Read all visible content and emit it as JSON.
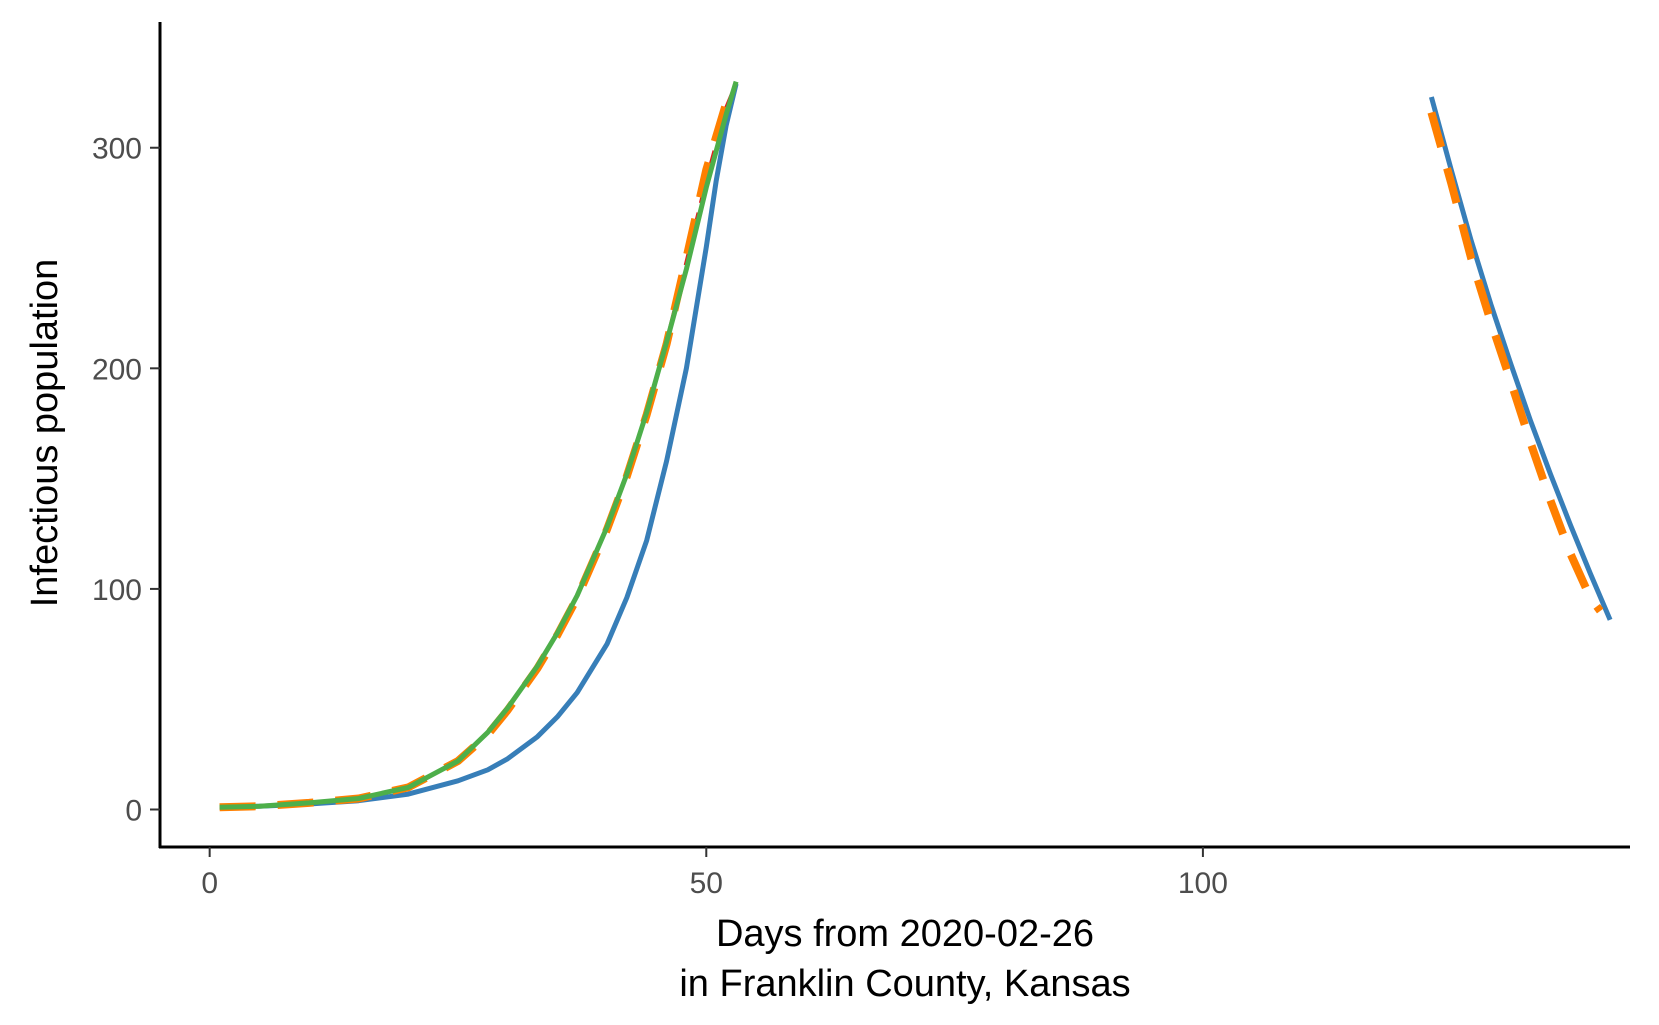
{
  "chart_data": {
    "type": "line",
    "title": "",
    "xlabel": [
      "Days from 2020-02-26",
      "in Franklin County, Kansas"
    ],
    "ylabel": "Infectious population",
    "xlim": [
      -5,
      143
    ],
    "ylim": [
      -17,
      357
    ],
    "x_ticks": [
      0,
      50,
      100
    ],
    "y_ticks": [
      0,
      100,
      200,
      300
    ],
    "grid": false,
    "legend": "none",
    "series": [
      {
        "color": "#377eb8",
        "style": "solid",
        "segments": [
          [
            [
              1,
              1
            ],
            [
              5,
              1.5
            ],
            [
              10,
              2.5
            ],
            [
              15,
              4
            ],
            [
              20,
              7
            ],
            [
              25,
              13
            ],
            [
              28,
              18
            ],
            [
              30,
              23
            ],
            [
              33,
              33
            ],
            [
              35,
              42
            ],
            [
              37,
              53
            ],
            [
              40,
              75
            ],
            [
              42,
              96
            ],
            [
              44,
              122
            ],
            [
              46,
              158
            ],
            [
              48,
              200
            ],
            [
              50,
              255
            ],
            [
              51,
              285
            ],
            [
              52,
              310
            ],
            [
              53,
              329
            ]
          ],
          [
            [
              123,
              323
            ],
            [
              125,
              290
            ],
            [
              127,
              258
            ],
            [
              129,
              229
            ],
            [
              131,
              202
            ],
            [
              133,
              176
            ],
            [
              135,
              152
            ],
            [
              137,
              129
            ],
            [
              139,
              107
            ],
            [
              141,
              86
            ]
          ]
        ]
      },
      {
        "color": "#e41a1c",
        "style": "dashed",
        "segments": [
          [
            [
              1,
              1
            ],
            [
              5,
              1.5
            ],
            [
              10,
              3
            ],
            [
              15,
              5
            ],
            [
              20,
              10
            ],
            [
              25,
              22
            ],
            [
              28,
              35
            ],
            [
              30,
              46
            ],
            [
              33,
              65
            ],
            [
              35,
              80
            ],
            [
              37,
              97
            ],
            [
              40,
              128
            ],
            [
              42,
              152
            ],
            [
              44,
              180
            ],
            [
              46,
              212
            ],
            [
              48,
              248
            ],
            [
              50,
              285
            ],
            [
              52,
              318
            ],
            [
              53,
              329
            ]
          ]
        ]
      },
      {
        "color": "#ff7f00",
        "style": "dashed",
        "segments": [
          [
            [
              1,
              1
            ],
            [
              5,
              1.5
            ],
            [
              10,
              3
            ],
            [
              15,
              5
            ],
            [
              20,
              10
            ],
            [
              25,
              22
            ],
            [
              28,
              34
            ],
            [
              30,
              45
            ],
            [
              33,
              64
            ],
            [
              35,
              79
            ],
            [
              37,
              96
            ],
            [
              40,
              127
            ],
            [
              42,
              151
            ],
            [
              44,
              179
            ],
            [
              46,
              211
            ],
            [
              48,
              250
            ],
            [
              50,
              290
            ],
            [
              51,
              305
            ],
            [
              52,
              320
            ],
            [
              53,
              326
            ]
          ],
          [
            [
              123,
              316
            ],
            [
              125,
              284
            ],
            [
              127,
              250
            ],
            [
              129,
              221
            ],
            [
              131,
              194
            ],
            [
              133,
              166
            ],
            [
              135,
              140
            ],
            [
              137,
              116
            ],
            [
              139,
              96
            ],
            [
              140,
              90
            ]
          ]
        ]
      },
      {
        "color": "#4daf4a",
        "style": "solid",
        "segments": [
          [
            [
              1,
              1
            ],
            [
              5,
              1.5
            ],
            [
              10,
              3
            ],
            [
              15,
              5
            ],
            [
              20,
              10
            ],
            [
              25,
              22
            ],
            [
              28,
              35
            ],
            [
              30,
              46
            ],
            [
              33,
              65
            ],
            [
              35,
              80
            ],
            [
              37,
              97
            ],
            [
              40,
              128
            ],
            [
              42,
              152
            ],
            [
              44,
              180
            ],
            [
              46,
              212
            ],
            [
              48,
              245
            ],
            [
              50,
              282
            ],
            [
              52,
              315
            ],
            [
              53,
              330
            ]
          ]
        ]
      }
    ]
  }
}
